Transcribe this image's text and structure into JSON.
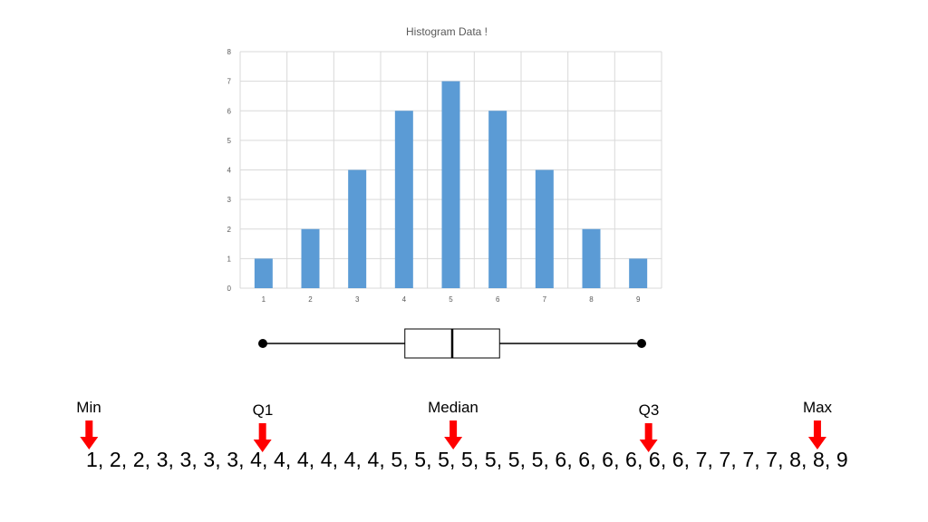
{
  "chart_data": [
    {
      "type": "bar",
      "title": "Histogram Data !",
      "categories": [
        "1",
        "2",
        "3",
        "4",
        "5",
        "6",
        "7",
        "8",
        "9"
      ],
      "values": [
        1,
        2,
        4,
        6,
        7,
        6,
        4,
        2,
        1
      ],
      "y_ticks": [
        "0",
        "1",
        "2",
        "3",
        "4",
        "5",
        "6",
        "7",
        "8"
      ],
      "ylim": [
        0,
        8
      ],
      "grid": true,
      "bar_color": "#5b9bd5"
    },
    {
      "type": "boxplot",
      "min": 1,
      "q1": 4,
      "median": 5,
      "q3": 6,
      "max": 9
    }
  ],
  "labels": {
    "min": "Min",
    "q1": "Q1",
    "median": "Median",
    "q3": "Q3",
    "max": "Max"
  },
  "sequence": "1, 2, 2, 3, 3, 3, 3, 4, 4, 4, 4, 4, 4, 5, 5, 5, 5, 5, 5, 5, 6, 6, 6, 6, 6, 6, 7, 7, 7, 7, 8, 8, 9",
  "colors": {
    "arrow": "#ff0000",
    "bar": "#5b9bd5"
  }
}
